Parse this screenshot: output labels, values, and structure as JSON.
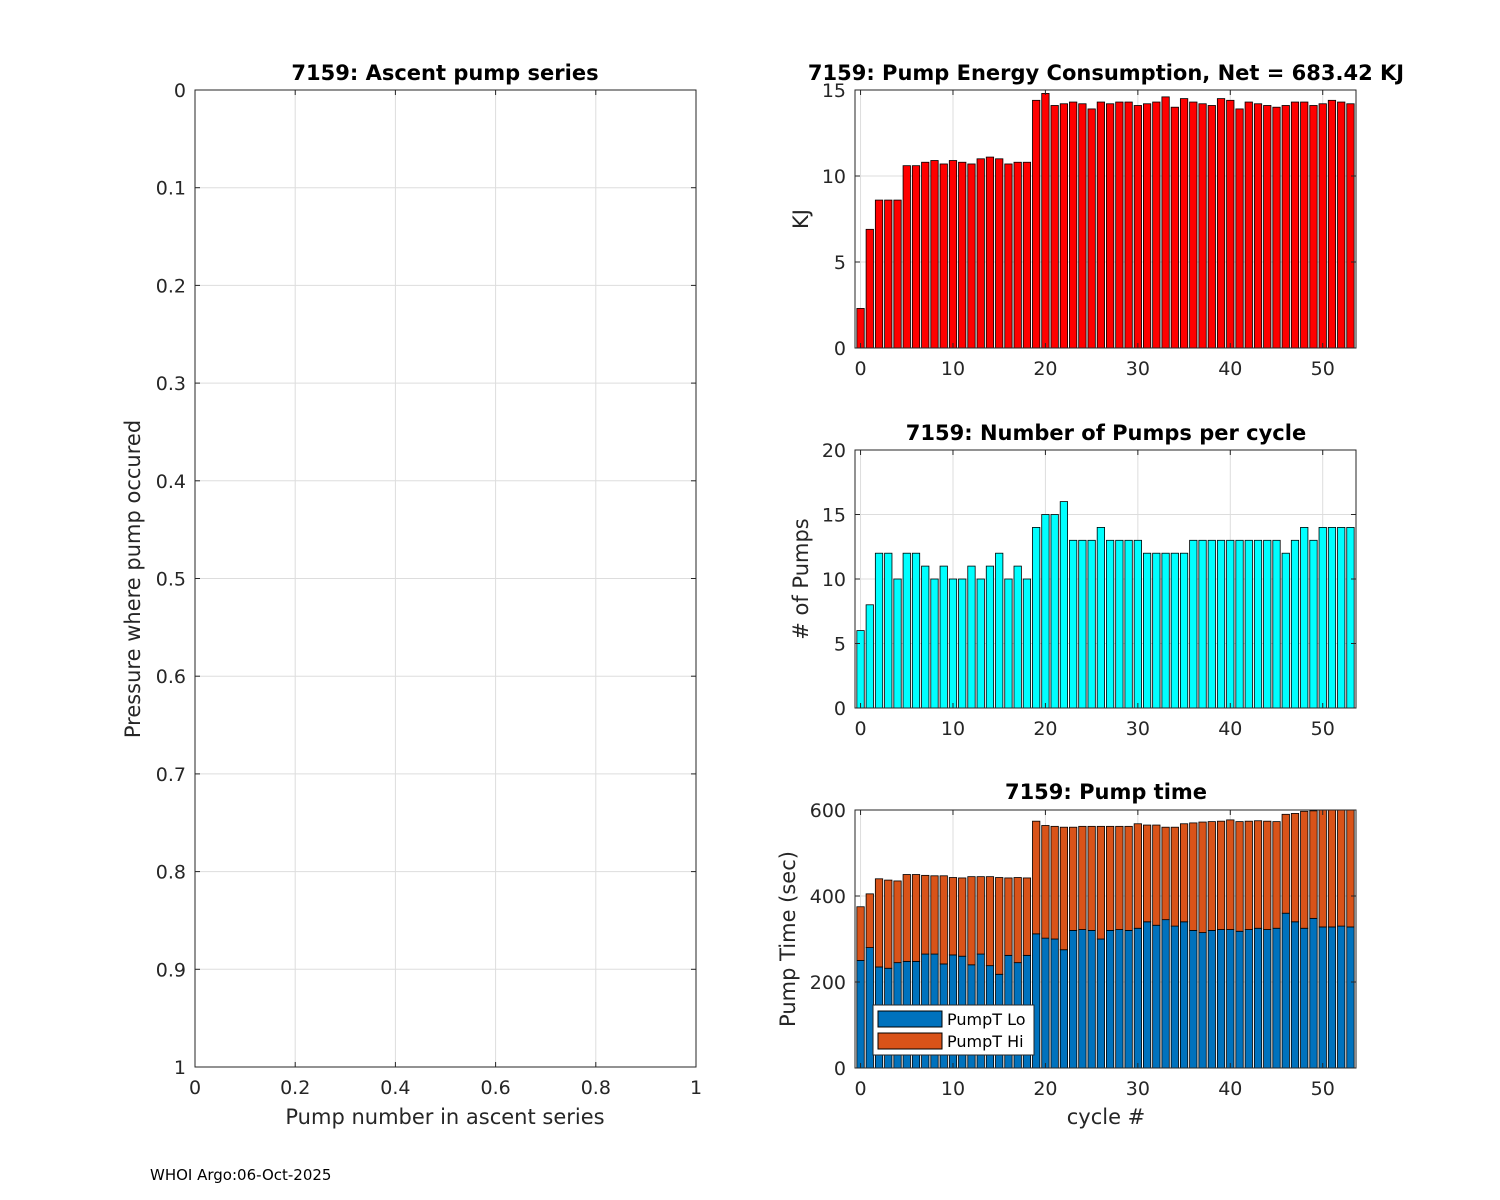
{
  "footer": "WHOI Argo:06-Oct-2025",
  "colors": {
    "energy": "#ff0000",
    "pumps": "#00ffff",
    "lo": "#0072bd",
    "hi": "#d95319",
    "grid": "#dddddd",
    "axis": "#262626"
  },
  "chart_data": [
    {
      "id": "ascent",
      "type": "scatter",
      "title": "7159: Ascent pump series",
      "xlabel": "Pump number in ascent series",
      "ylabel": "Pressure where pump occured",
      "xlim": [
        0,
        1
      ],
      "ylim": [
        0,
        1
      ],
      "y_reversed": true,
      "xticks": [
        "0",
        "0.2",
        "0.4",
        "0.6",
        "0.8",
        "1"
      ],
      "yticks": [
        "0",
        "0.1",
        "0.2",
        "0.3",
        "0.4",
        "0.5",
        "0.6",
        "0.7",
        "0.8",
        "0.9",
        "1"
      ],
      "grid": true,
      "x": [],
      "y": []
    },
    {
      "id": "energy",
      "type": "bar",
      "title": "7159: Pump Energy Consumption,  Net = 683.42 KJ",
      "xlabel": "",
      "ylabel": "KJ",
      "xlim": [
        -0.6,
        53.6
      ],
      "ylim": [
        0,
        15
      ],
      "xticks": [
        "0",
        "10",
        "20",
        "30",
        "40",
        "50"
      ],
      "yticks": [
        "0",
        "5",
        "10",
        "15"
      ],
      "grid": true,
      "x_start": 0,
      "values": [
        2.3,
        6.9,
        8.6,
        8.6,
        8.6,
        10.6,
        10.6,
        10.8,
        10.9,
        10.7,
        10.9,
        10.8,
        10.7,
        11.0,
        11.1,
        11.0,
        10.7,
        10.8,
        10.8,
        14.4,
        14.8,
        14.1,
        14.2,
        14.3,
        14.2,
        13.9,
        14.3,
        14.2,
        14.3,
        14.3,
        14.1,
        14.2,
        14.3,
        14.6,
        14.0,
        14.5,
        14.3,
        14.2,
        14.1,
        14.5,
        14.4,
        13.9,
        14.3,
        14.2,
        14.1,
        14.0,
        14.1,
        14.3,
        14.3,
        14.1,
        14.2,
        14.4,
        14.3,
        14.2
      ]
    },
    {
      "id": "pumps",
      "type": "bar",
      "title": "7159: Number of Pumps per cycle",
      "xlabel": "",
      "ylabel": "# of Pumps",
      "xlim": [
        -0.6,
        53.6
      ],
      "ylim": [
        0,
        20
      ],
      "xticks": [
        "0",
        "10",
        "20",
        "30",
        "40",
        "50"
      ],
      "yticks": [
        "0",
        "5",
        "10",
        "15",
        "20"
      ],
      "grid": true,
      "x_start": 0,
      "values": [
        6,
        8,
        12,
        12,
        10,
        12,
        12,
        11,
        10,
        11,
        10,
        10,
        11,
        10,
        11,
        12,
        10,
        11,
        10,
        14,
        15,
        15,
        16,
        13,
        13,
        13,
        14,
        13,
        13,
        13,
        13,
        12,
        12,
        12,
        12,
        12,
        13,
        13,
        13,
        13,
        13,
        13,
        13,
        13,
        13,
        13,
        12,
        13,
        14,
        13,
        14,
        14,
        14,
        14
      ]
    },
    {
      "id": "pumptime",
      "type": "bar",
      "stacked": true,
      "title": "7159: Pump time",
      "xlabel": "cycle #",
      "ylabel": "Pump Time (sec)",
      "xlim": [
        -0.6,
        53.6
      ],
      "ylim": [
        0,
        600
      ],
      "xticks": [
        "0",
        "10",
        "20",
        "30",
        "40",
        "50"
      ],
      "yticks": [
        "0",
        "200",
        "400",
        "600"
      ],
      "grid": true,
      "legend": {
        "position": "bottom-left",
        "entries": [
          "PumpT Lo",
          "PumpT Hi"
        ]
      },
      "x_start": 0,
      "series": [
        {
          "name": "PumpT Lo",
          "values": [
            250,
            280,
            235,
            232,
            245,
            248,
            248,
            265,
            265,
            242,
            263,
            260,
            240,
            265,
            238,
            218,
            262,
            245,
            262,
            312,
            302,
            300,
            275,
            320,
            322,
            320,
            300,
            320,
            322,
            320,
            325,
            340,
            332,
            345,
            330,
            340,
            320,
            315,
            320,
            322,
            322,
            318,
            322,
            325,
            322,
            325,
            360,
            340,
            325,
            348,
            328,
            328,
            330,
            328
          ]
        },
        {
          "name": "PumpT Hi",
          "values": [
            125,
            125,
            205,
            205,
            190,
            202,
            202,
            183,
            182,
            205,
            180,
            182,
            205,
            180,
            207,
            225,
            180,
            198,
            180,
            262,
            262,
            262,
            285,
            240,
            240,
            242,
            262,
            242,
            240,
            242,
            243,
            225,
            233,
            215,
            230,
            228,
            250,
            257,
            253,
            252,
            255,
            255,
            252,
            250,
            252,
            248,
            230,
            252,
            272,
            250,
            272,
            275,
            275,
            280
          ]
        }
      ]
    }
  ]
}
